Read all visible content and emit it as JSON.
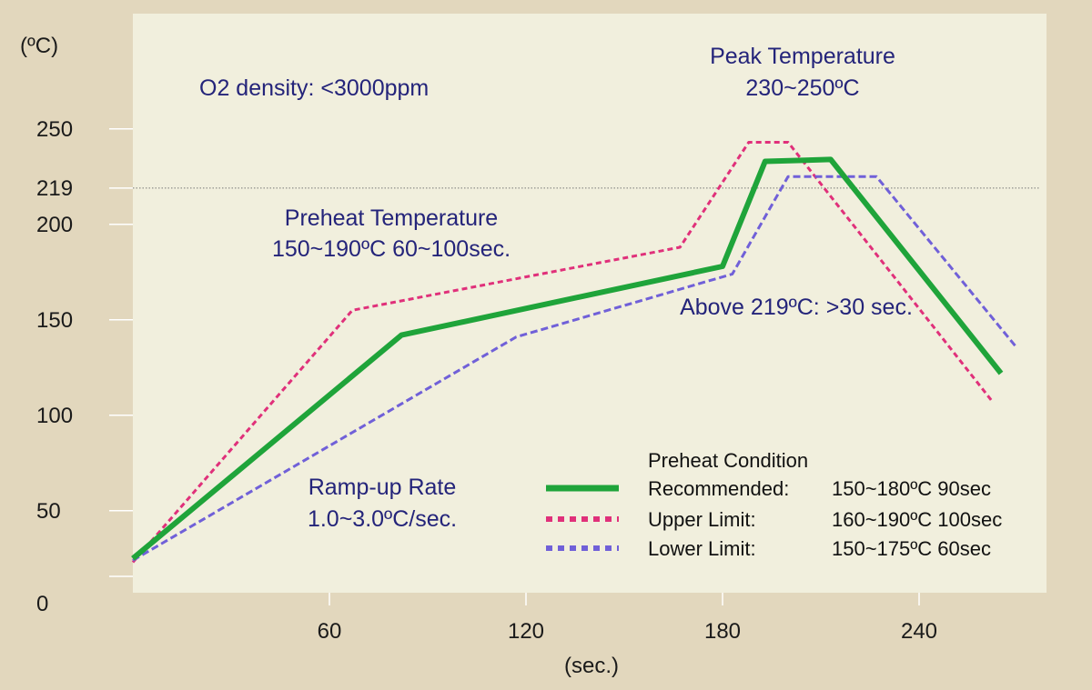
{
  "chart_data": {
    "type": "line",
    "title": "",
    "xlabel": "(sec.)",
    "ylabel": "(ºC)",
    "xlim": [
      0,
      270
    ],
    "ylim": [
      0,
      250
    ],
    "x_ticks": [
      60,
      120,
      180,
      240
    ],
    "y_ticks": [
      0,
      50,
      100,
      150,
      200,
      219,
      250
    ],
    "reference_line": {
      "y": 219,
      "style": "dotted"
    },
    "grid": false,
    "legend_placement": "bottom-right",
    "series": [
      {
        "name": "Recommended:",
        "condition": "150~180ºC 90sec",
        "color": "#1fa43a",
        "style": "solid",
        "x": [
          0,
          82,
          180,
          193,
          213,
          265
        ],
        "y": [
          25,
          142,
          178,
          233,
          234,
          122
        ]
      },
      {
        "name": "Upper Limit:",
        "condition": "160~190ºC 100sec",
        "color": "#e0307a",
        "style": "dotted",
        "x": [
          0,
          67,
          167,
          188,
          200,
          262
        ],
        "y": [
          23,
          155,
          188,
          243,
          243,
          108
        ]
      },
      {
        "name": "Lower Limit:",
        "condition": "150~175ºC 60sec",
        "color": "#7060d8",
        "style": "dashed",
        "x": [
          0,
          117,
          183,
          200,
          227,
          270
        ],
        "y": [
          24,
          141,
          174,
          225,
          225,
          135
        ]
      }
    ],
    "legend_title": "Preheat Condition",
    "annotations": [
      {
        "text": "O2 density: <3000ppm"
      },
      {
        "text": "Peak Temperature"
      },
      {
        "text": "230~250ºC"
      },
      {
        "text": "Preheat Temperature"
      },
      {
        "text": "150~190ºC 60~100sec."
      },
      {
        "text": "Above 219ºC: >30 sec."
      },
      {
        "text": "Ramp-up Rate"
      },
      {
        "text": "1.0~3.0ºC/sec."
      }
    ]
  },
  "colors": {
    "page_background": "#e2d7bd",
    "plot_background": "#f1efdd",
    "annotation_text": "#24247a"
  }
}
